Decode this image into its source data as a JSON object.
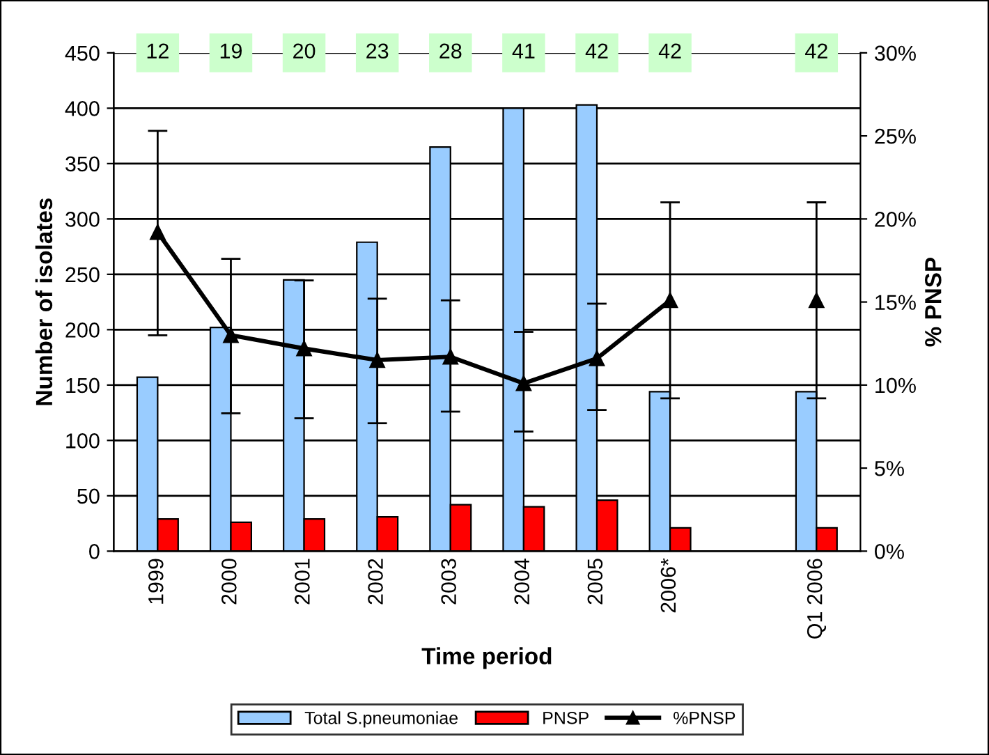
{
  "chart_data": {
    "type": "bar",
    "xlabel": "Time period",
    "ylabel": "Number of isolates",
    "y2label": "% PNSP",
    "categories": [
      "1999",
      "2000",
      "2001",
      "2002",
      "2003",
      "2004",
      "2005",
      "2006*",
      null,
      "Q1 2006"
    ],
    "series": [
      {
        "name": "Total S.pneumoniae",
        "color": "#99ccff",
        "values": [
          157,
          202,
          245,
          279,
          365,
          400,
          403,
          144,
          null,
          144
        ]
      },
      {
        "name": "PNSP",
        "color": "#ff0000",
        "values": [
          29,
          26,
          29,
          31,
          42,
          40,
          46,
          21,
          null,
          21
        ]
      },
      {
        "name": "%PNSP",
        "type": "line",
        "axis": "y2",
        "color": "#000000",
        "marker": "triangle",
        "values": [
          19.2,
          13.0,
          12.2,
          11.5,
          11.7,
          10.1,
          11.6,
          15.1,
          null,
          15.1
        ],
        "errors": [
          [
            13.0,
            25.3
          ],
          [
            8.3,
            17.6
          ],
          [
            8.0,
            16.3
          ],
          [
            7.7,
            15.2
          ],
          [
            8.4,
            15.1
          ],
          [
            7.2,
            13.2
          ],
          [
            8.5,
            14.9
          ],
          [
            9.2,
            21.0
          ],
          null,
          [
            9.2,
            21.0
          ]
        ]
      }
    ],
    "annotations": [
      "12",
      "19",
      "20",
      "23",
      "28",
      "41",
      "42",
      "42",
      "42"
    ],
    "ylim": [
      0,
      450
    ],
    "yticks": [
      0,
      50,
      100,
      150,
      200,
      250,
      300,
      350,
      400,
      450
    ],
    "y2lim": [
      0,
      30
    ],
    "y2ticks": [
      {
        "value": 0,
        "label": "0%"
      },
      {
        "value": 5,
        "label": "5%"
      },
      {
        "value": 10,
        "label": "10%"
      },
      {
        "value": 15,
        "label": "15%"
      },
      {
        "value": 20,
        "label": "20%"
      },
      {
        "value": 25,
        "label": "25%"
      },
      {
        "value": 30,
        "label": "30%"
      }
    ],
    "grid": "y",
    "legend": "bottom"
  }
}
